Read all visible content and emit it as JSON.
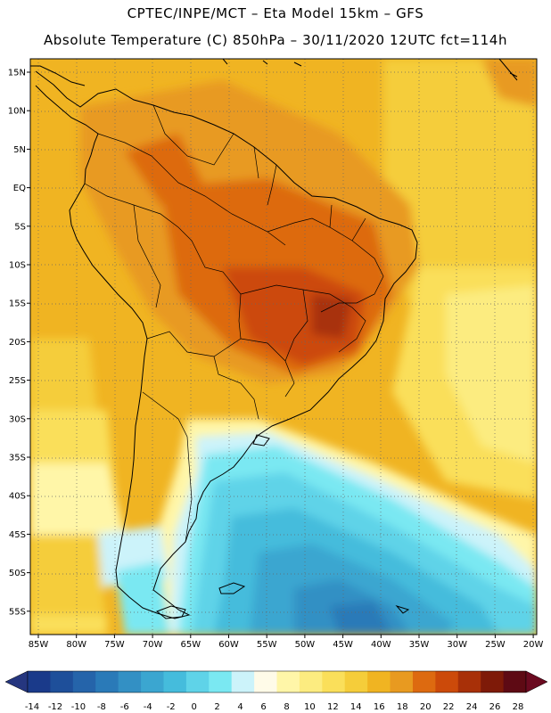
{
  "header": {
    "line1": "CPTEC/INPE/MCT –  Eta Model 15km – GFS",
    "line2": "Absolute Temperature (C) 850hPa – 30/11/2020 12UTC fct=114h"
  },
  "map": {
    "latitude_labels": [
      "15N",
      "10N",
      "5N",
      "EQ",
      "5S",
      "10S",
      "15S",
      "20S",
      "25S",
      "30S",
      "35S",
      "40S",
      "45S",
      "50S",
      "55S"
    ],
    "longitude_labels": [
      "85W",
      "80W",
      "75W",
      "70W",
      "65W",
      "60W",
      "55W",
      "50W",
      "45W",
      "40W",
      "35W",
      "30W",
      "25W",
      "20W"
    ],
    "gridlines": "dotted"
  },
  "colorbar": {
    "labels": [
      "-14",
      "-12",
      "-10",
      "-8",
      "-6",
      "-4",
      "-2",
      "0",
      "2",
      "4",
      "6",
      "8",
      "10",
      "12",
      "14",
      "16",
      "18",
      "20",
      "22",
      "24",
      "26",
      "28"
    ],
    "colors": [
      "#1a3a8a",
      "#1e4f9a",
      "#2564aa",
      "#2a7ab8",
      "#3390c4",
      "#3ba6d0",
      "#45bcdc",
      "#5fd3e8",
      "#7ae8f2",
      "#ccf3fa",
      "#fffbe8",
      "#fff6a8",
      "#fcec80",
      "#fadf5a",
      "#f5cd3a",
      "#f0b422",
      "#e89a20",
      "#dd6a10",
      "#cc4a0a",
      "#a83008",
      "#7e1a08",
      "#5e0a14"
    ],
    "under_color": "#25367f",
    "over_color": "#6b0a20",
    "units": "C"
  }
}
